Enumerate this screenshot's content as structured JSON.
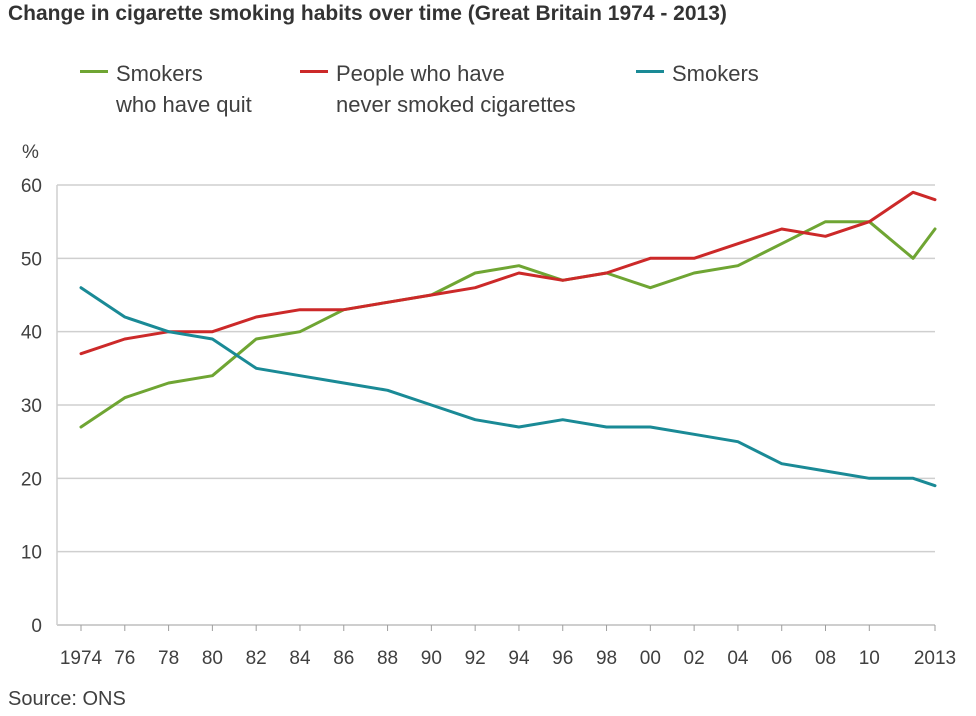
{
  "title": "Change in cigarette smoking habits over time (Great Britain 1974 - 2013)",
  "source": "Source: ONS",
  "chart_data": {
    "type": "line",
    "title": "Change in cigarette smoking habits over time (Great Britain 1974 - 2013)",
    "ylabel": "%",
    "xlabel": "",
    "ylim": [
      0,
      60
    ],
    "yticks": [
      0,
      10,
      20,
      30,
      40,
      50,
      60
    ],
    "xlim": [
      1974,
      2013
    ],
    "xticks": [
      {
        "value": 1974,
        "label": "1974"
      },
      {
        "value": 1976,
        "label": "76"
      },
      {
        "value": 1978,
        "label": "78"
      },
      {
        "value": 1980,
        "label": "80"
      },
      {
        "value": 1982,
        "label": "82"
      },
      {
        "value": 1984,
        "label": "84"
      },
      {
        "value": 1986,
        "label": "86"
      },
      {
        "value": 1988,
        "label": "88"
      },
      {
        "value": 1990,
        "label": "90"
      },
      {
        "value": 1992,
        "label": "92"
      },
      {
        "value": 1994,
        "label": "94"
      },
      {
        "value": 1996,
        "label": "96"
      },
      {
        "value": 1998,
        "label": "98"
      },
      {
        "value": 2000,
        "label": "00"
      },
      {
        "value": 2002,
        "label": "02"
      },
      {
        "value": 2004,
        "label": "04"
      },
      {
        "value": 2006,
        "label": "06"
      },
      {
        "value": 2008,
        "label": "08"
      },
      {
        "value": 2010,
        "label": "10"
      },
      {
        "value": 2013,
        "label": "2013"
      }
    ],
    "grid": true,
    "legend_position": "top",
    "x": [
      1974,
      1976,
      1978,
      1980,
      1982,
      1984,
      1986,
      1988,
      1990,
      1992,
      1994,
      1996,
      1998,
      2000,
      2002,
      2004,
      2006,
      2008,
      2010,
      2012,
      2013
    ],
    "series": [
      {
        "name": "Smokers\nwho have quit",
        "color": "#6fa533",
        "values": [
          27,
          31,
          33,
          34,
          39,
          40,
          43,
          44,
          45,
          48,
          49,
          47,
          48,
          46,
          48,
          49,
          52,
          55,
          55,
          50,
          54
        ]
      },
      {
        "name": "People who have\nnever smoked cigarettes",
        "color": "#cc2929",
        "values": [
          37,
          39,
          40,
          40,
          42,
          43,
          43,
          44,
          45,
          46,
          48,
          47,
          48,
          50,
          50,
          52,
          54,
          53,
          55,
          59,
          58
        ]
      },
      {
        "name": "Smokers",
        "color": "#1a8a96",
        "values": [
          46,
          42,
          40,
          39,
          35,
          34,
          33,
          32,
          30,
          28,
          27,
          28,
          27,
          27,
          26,
          25,
          22,
          21,
          20,
          20,
          19
        ]
      }
    ]
  }
}
